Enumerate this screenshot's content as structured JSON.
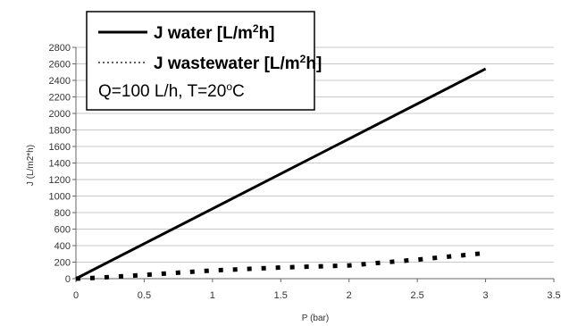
{
  "chart_data": {
    "type": "line",
    "xlabel": "P (bar)",
    "ylabel": "J (L/m2*h)",
    "xlim": [
      0,
      3.5
    ],
    "ylim": [
      0,
      2800
    ],
    "x_ticks": [
      "0",
      "0.5",
      "1",
      "1.5",
      "2",
      "2.5",
      "3",
      "3.5"
    ],
    "y_ticks": [
      "0",
      "200",
      "400",
      "600",
      "800",
      "1000",
      "1200",
      "1400",
      "1600",
      "1800",
      "2000",
      "2200",
      "2400",
      "2600",
      "2800"
    ],
    "grid": "horizontal",
    "legend_position": "top-left",
    "series": [
      {
        "name": "J water [L/m2h]",
        "style": "solid",
        "color": "#000000",
        "x": [
          0,
          3.0
        ],
        "y": [
          0,
          2540
        ]
      },
      {
        "name": "J wastewater [L/m2h]",
        "style": "dotted",
        "color": "#000000",
        "x": [
          0,
          0.15,
          0.5,
          1.0,
          1.5,
          2.0,
          2.5,
          3.0
        ],
        "y": [
          0,
          10,
          45,
          100,
          135,
          160,
          230,
          310
        ]
      }
    ],
    "legend": {
      "entries": [
        {
          "prefix": "J water [L/m",
          "sup": "2",
          "suffix": "h]"
        },
        {
          "prefix": "J wastewater [L/m",
          "sup": "2",
          "suffix": "h]"
        }
      ],
      "note": {
        "prefix": "Q=100 L/h, T=20",
        "sup": "o",
        "suffix": "C"
      }
    }
  }
}
